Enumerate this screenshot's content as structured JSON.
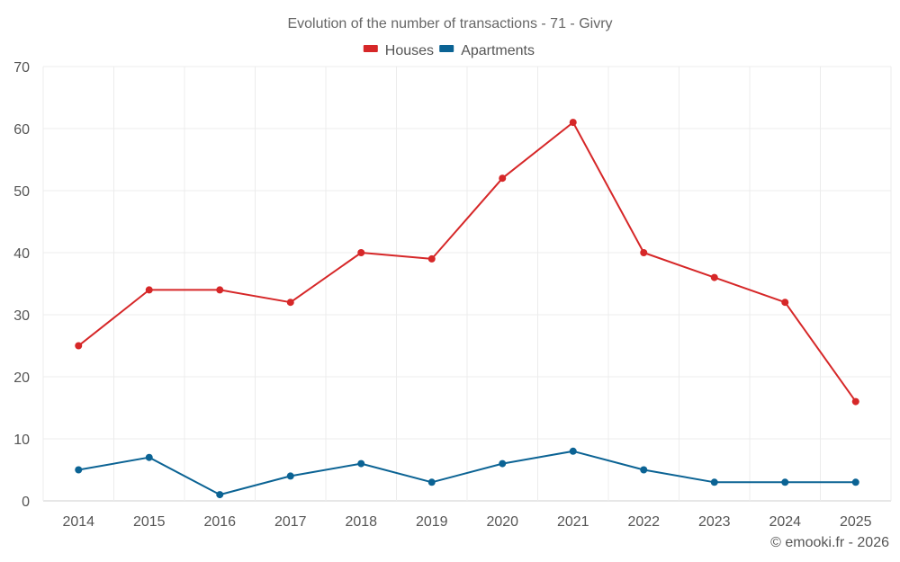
{
  "chart_data": {
    "type": "line",
    "title": "Evolution of the number of transactions - 71 - Givry",
    "categories": [
      "2014",
      "2015",
      "2016",
      "2017",
      "2018",
      "2019",
      "2020",
      "2021",
      "2022",
      "2023",
      "2024",
      "2025"
    ],
    "series": [
      {
        "name": "Houses",
        "color": "#d62728",
        "values": [
          25,
          34,
          34,
          32,
          40,
          39,
          52,
          61,
          40,
          36,
          32,
          16
        ]
      },
      {
        "name": "Apartments",
        "color": "#0b6394",
        "values": [
          5,
          7,
          1,
          4,
          6,
          3,
          6,
          8,
          5,
          3,
          3,
          3
        ]
      }
    ],
    "yticks": [
      0,
      10,
      20,
      30,
      40,
      50,
      60,
      70
    ],
    "ylim": [
      0,
      70
    ],
    "grid": true,
    "legend_position": "top-center"
  },
  "footer": {
    "credit": "© emooki.fr - 2026"
  }
}
